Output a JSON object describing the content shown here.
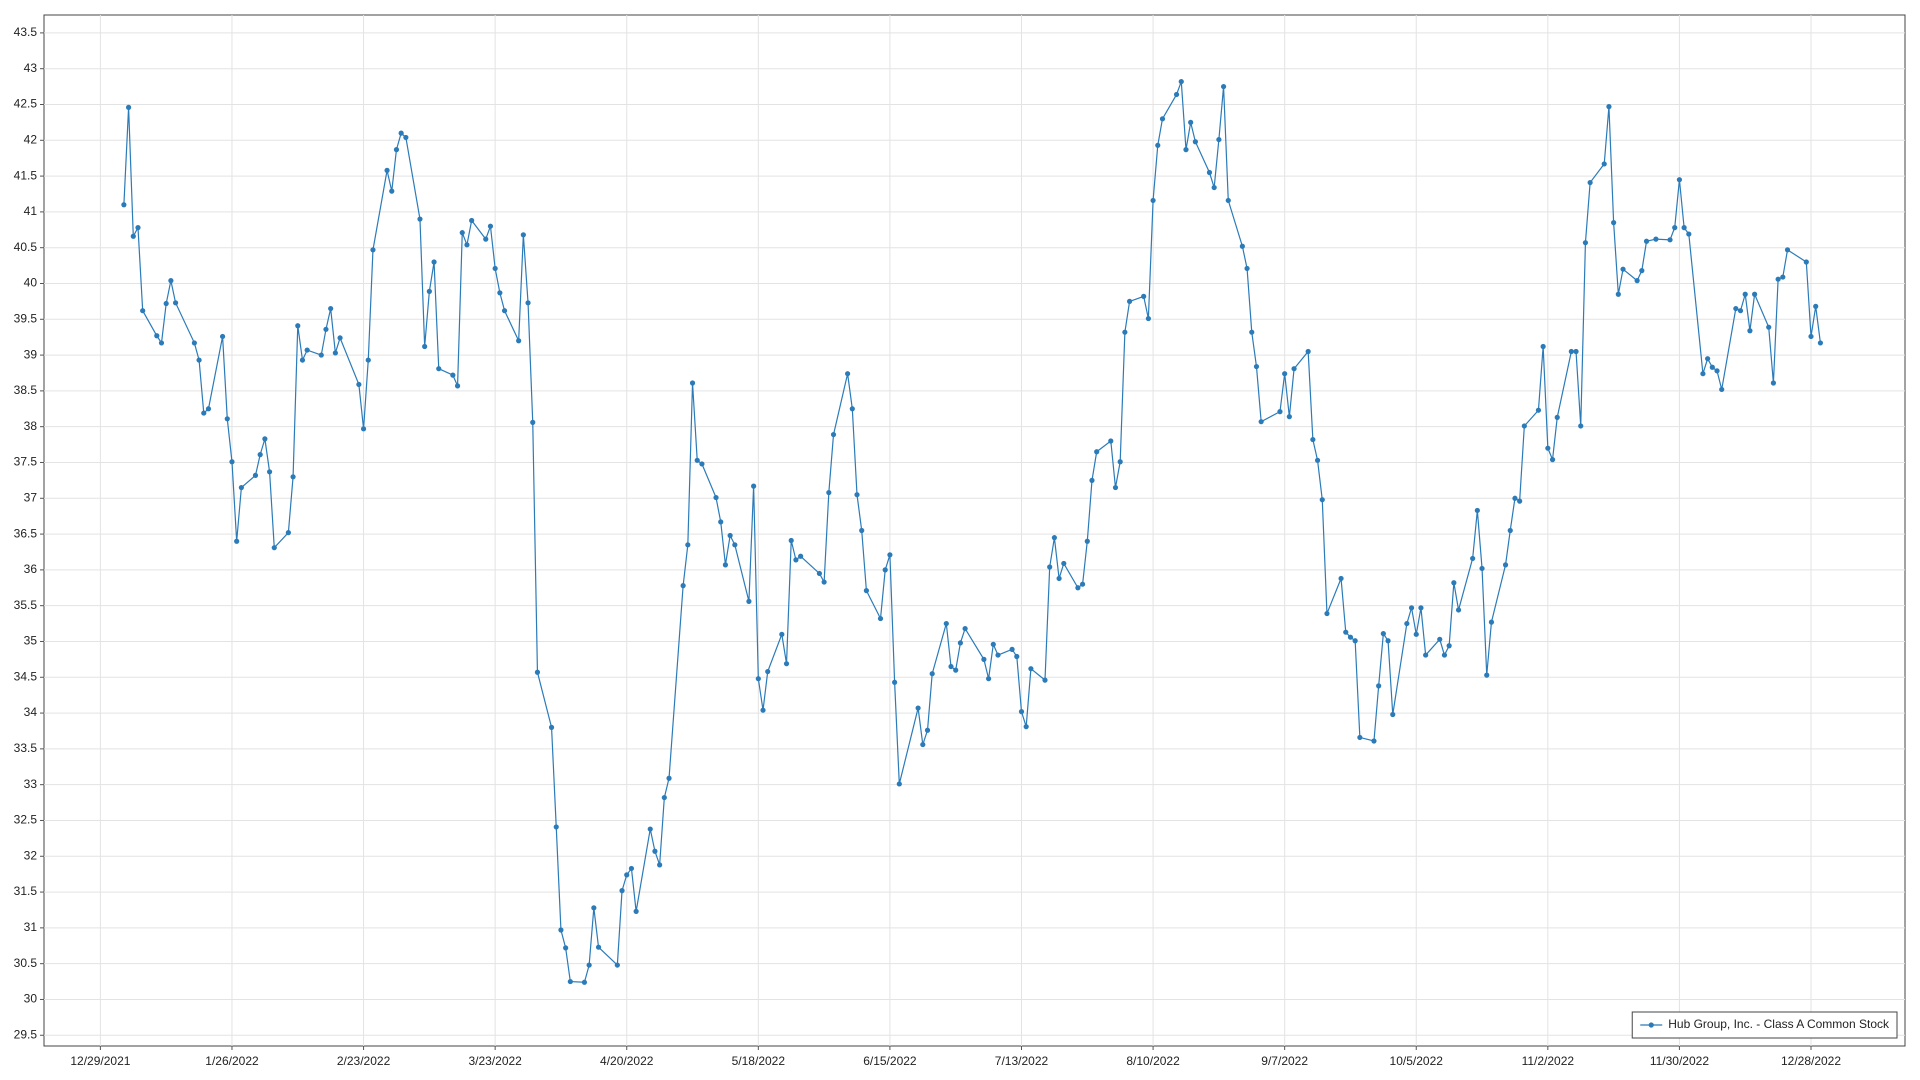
{
  "chart_data": {
    "type": "line",
    "markers": true,
    "grid": true,
    "legend_position": "lower right",
    "x": [
      "1/3/2022",
      "1/4/2022",
      "1/5/2022",
      "1/6/2022",
      "1/7/2022",
      "1/10/2022",
      "1/11/2022",
      "1/12/2022",
      "1/13/2022",
      "1/14/2022",
      "1/18/2022",
      "1/19/2022",
      "1/20/2022",
      "1/21/2022",
      "1/24/2022",
      "1/25/2022",
      "1/26/2022",
      "1/27/2022",
      "1/28/2022",
      "1/31/2022",
      "2/1/2022",
      "2/2/2022",
      "2/3/2022",
      "2/4/2022",
      "2/7/2022",
      "2/8/2022",
      "2/9/2022",
      "2/10/2022",
      "2/11/2022",
      "2/14/2022",
      "2/15/2022",
      "2/16/2022",
      "2/17/2022",
      "2/18/2022",
      "2/22/2022",
      "2/23/2022",
      "2/24/2022",
      "2/25/2022",
      "2/28/2022",
      "3/1/2022",
      "3/2/2022",
      "3/3/2022",
      "3/4/2022",
      "3/7/2022",
      "3/8/2022",
      "3/9/2022",
      "3/10/2022",
      "3/11/2022",
      "3/14/2022",
      "3/15/2022",
      "3/16/2022",
      "3/17/2022",
      "3/18/2022",
      "3/21/2022",
      "3/22/2022",
      "3/23/2022",
      "3/24/2022",
      "3/25/2022",
      "3/28/2022",
      "3/29/2022",
      "3/30/2022",
      "3/31/2022",
      "4/1/2022",
      "4/4/2022",
      "4/5/2022",
      "4/6/2022",
      "4/7/2022",
      "4/8/2022",
      "4/11/2022",
      "4/12/2022",
      "4/13/2022",
      "4/14/2022",
      "4/18/2022",
      "4/19/2022",
      "4/20/2022",
      "4/21/2022",
      "4/22/2022",
      "4/25/2022",
      "4/26/2022",
      "4/27/2022",
      "4/28/2022",
      "4/29/2022",
      "5/2/2022",
      "5/3/2022",
      "5/4/2022",
      "5/5/2022",
      "5/6/2022",
      "5/9/2022",
      "5/10/2022",
      "5/11/2022",
      "5/12/2022",
      "5/13/2022",
      "5/16/2022",
      "5/17/2022",
      "5/18/2022",
      "5/19/2022",
      "5/20/2022",
      "5/23/2022",
      "5/24/2022",
      "5/25/2022",
      "5/26/2022",
      "5/27/2022",
      "5/31/2022",
      "6/1/2022",
      "6/2/2022",
      "6/3/2022",
      "6/6/2022",
      "6/7/2022",
      "6/8/2022",
      "6/9/2022",
      "6/10/2022",
      "6/13/2022",
      "6/14/2022",
      "6/15/2022",
      "6/16/2022",
      "6/17/2022",
      "6/21/2022",
      "6/22/2022",
      "6/23/2022",
      "6/24/2022",
      "6/27/2022",
      "6/28/2022",
      "6/29/2022",
      "6/30/2022",
      "7/1/2022",
      "7/5/2022",
      "7/6/2022",
      "7/7/2022",
      "7/8/2022",
      "7/11/2022",
      "7/12/2022",
      "7/13/2022",
      "7/14/2022",
      "7/15/2022",
      "7/18/2022",
      "7/19/2022",
      "7/20/2022",
      "7/21/2022",
      "7/22/2022",
      "7/25/2022",
      "7/26/2022",
      "7/27/2022",
      "7/28/2022",
      "7/29/2022",
      "8/1/2022",
      "8/2/2022",
      "8/3/2022",
      "8/4/2022",
      "8/5/2022",
      "8/8/2022",
      "8/9/2022",
      "8/10/2022",
      "8/11/2022",
      "8/12/2022",
      "8/15/2022",
      "8/16/2022",
      "8/17/2022",
      "8/18/2022",
      "8/19/2022",
      "8/22/2022",
      "8/23/2022",
      "8/24/2022",
      "8/25/2022",
      "8/26/2022",
      "8/29/2022",
      "8/30/2022",
      "8/31/2022",
      "9/1/2022",
      "9/2/2022",
      "9/6/2022",
      "9/7/2022",
      "9/8/2022",
      "9/9/2022",
      "9/12/2022",
      "9/13/2022",
      "9/14/2022",
      "9/15/2022",
      "9/16/2022",
      "9/19/2022",
      "9/20/2022",
      "9/21/2022",
      "9/22/2022",
      "9/23/2022",
      "9/26/2022",
      "9/27/2022",
      "9/28/2022",
      "9/29/2022",
      "9/30/2022",
      "10/3/2022",
      "10/4/2022",
      "10/5/2022",
      "10/6/2022",
      "10/7/2022",
      "10/10/2022",
      "10/11/2022",
      "10/12/2022",
      "10/13/2022",
      "10/14/2022",
      "10/17/2022",
      "10/18/2022",
      "10/19/2022",
      "10/20/2022",
      "10/21/2022",
      "10/24/2022",
      "10/25/2022",
      "10/26/2022",
      "10/27/2022",
      "10/28/2022",
      "10/31/2022",
      "11/1/2022",
      "11/2/2022",
      "11/3/2022",
      "11/4/2022",
      "11/7/2022",
      "11/8/2022",
      "11/9/2022",
      "11/10/2022",
      "11/11/2022",
      "11/14/2022",
      "11/15/2022",
      "11/16/2022",
      "11/17/2022",
      "11/18/2022",
      "11/21/2022",
      "11/22/2022",
      "11/23/2022",
      "11/25/2022",
      "11/28/2022",
      "11/29/2022",
      "11/30/2022",
      "12/1/2022",
      "12/2/2022",
      "12/5/2022",
      "12/6/2022",
      "12/7/2022",
      "12/8/2022",
      "12/9/2022",
      "12/12/2022",
      "12/13/2022",
      "12/14/2022",
      "12/15/2022",
      "12/16/2022",
      "12/19/2022",
      "12/20/2022",
      "12/21/2022",
      "12/22/2022",
      "12/23/2022",
      "12/27/2022",
      "12/28/2022",
      "12/29/2022",
      "12/30/2022"
    ],
    "series": [
      {
        "name": "Hub Group, Inc. - Class A Common Stock",
        "color": "#2b7bb9",
        "values": [
          41.1,
          42.46,
          40.66,
          40.78,
          39.62,
          39.27,
          39.17,
          39.72,
          40.04,
          39.73,
          39.17,
          38.93,
          38.19,
          38.25,
          39.26,
          38.11,
          37.51,
          36.4,
          37.15,
          37.32,
          37.61,
          37.83,
          37.37,
          36.31,
          36.52,
          37.3,
          39.41,
          38.93,
          39.07,
          39.0,
          39.36,
          39.65,
          39.03,
          39.24,
          38.59,
          37.97,
          38.93,
          40.47,
          41.58,
          41.29,
          41.87,
          42.1,
          42.04,
          40.9,
          39.12,
          39.89,
          40.3,
          38.81,
          38.72,
          38.57,
          40.71,
          40.54,
          40.88,
          40.62,
          40.8,
          40.21,
          39.87,
          39.62,
          39.2,
          40.68,
          39.73,
          38.06,
          34.57,
          33.8,
          32.41,
          30.97,
          30.72,
          30.25,
          30.24,
          30.48,
          31.28,
          30.73,
          30.48,
          31.52,
          31.74,
          31.83,
          31.23,
          32.38,
          32.07,
          31.88,
          32.82,
          33.09,
          35.78,
          36.35,
          38.61,
          37.53,
          37.48,
          37.01,
          36.67,
          36.07,
          36.48,
          36.35,
          35.56,
          37.17,
          34.48,
          34.04,
          34.58,
          35.1,
          34.69,
          36.41,
          36.14,
          36.19,
          35.95,
          35.83,
          37.08,
          37.89,
          38.74,
          38.25,
          37.05,
          36.55,
          35.71,
          35.32,
          36.0,
          36.21,
          34.43,
          33.01,
          34.07,
          33.56,
          33.76,
          34.55,
          35.25,
          34.65,
          34.6,
          34.98,
          35.18,
          34.75,
          34.48,
          34.96,
          34.81,
          34.89,
          34.79,
          34.02,
          33.81,
          34.62,
          34.46,
          36.04,
          36.45,
          35.88,
          36.09,
          35.75,
          35.8,
          36.4,
          37.25,
          37.65,
          37.8,
          37.15,
          37.51,
          39.32,
          39.75,
          39.82,
          39.51,
          41.16,
          41.93,
          42.3,
          42.64,
          42.82,
          41.87,
          42.25,
          41.98,
          41.55,
          41.34,
          42.01,
          42.75,
          41.16,
          40.52,
          40.21,
          39.32,
          38.84,
          38.07,
          38.21,
          38.74,
          38.14,
          38.81,
          39.05,
          37.82,
          37.53,
          36.98,
          35.39,
          35.88,
          35.13,
          35.06,
          35.01,
          33.66,
          33.61,
          34.38,
          35.11,
          35.01,
          33.98,
          35.25,
          35.47,
          35.1,
          35.47,
          34.81,
          35.03,
          34.81,
          34.94,
          35.82,
          35.44,
          36.16,
          36.83,
          36.02,
          34.53,
          35.27,
          36.07,
          36.55,
          37.0,
          36.96,
          38.01,
          38.23,
          39.12,
          37.7,
          37.54,
          38.13,
          39.05,
          39.05,
          38.01,
          40.57,
          41.41,
          41.67,
          42.47,
          40.85,
          39.85,
          40.2,
          40.04,
          40.18,
          40.59,
          40.62,
          40.61,
          40.78,
          41.45,
          40.78,
          40.69,
          38.74,
          38.95,
          38.83,
          38.78,
          38.52,
          39.65,
          39.62,
          39.85,
          39.34,
          39.85,
          39.39,
          38.61,
          40.06,
          40.09,
          40.47,
          40.3,
          39.26,
          39.68,
          39.17
        ]
      }
    ],
    "xlim": [
      "12/17/2021",
      "1/17/2023"
    ],
    "xticks": [
      "12/29/2021",
      "1/26/2022",
      "2/23/2022",
      "3/23/2022",
      "4/20/2022",
      "5/18/2022",
      "6/15/2022",
      "7/13/2022",
      "8/10/2022",
      "9/7/2022",
      "10/5/2022",
      "11/2/2022",
      "11/30/2022",
      "12/28/2022"
    ],
    "ylim": [
      29.35,
      43.75
    ],
    "yticks": [
      29.5,
      30,
      30.5,
      31,
      31.5,
      32,
      32.5,
      33,
      33.5,
      34,
      34.5,
      35,
      35.5,
      36,
      36.5,
      37,
      37.5,
      38,
      38.5,
      39,
      39.5,
      40,
      40.5,
      41,
      41.5,
      42,
      42.5,
      43,
      43.5
    ]
  }
}
